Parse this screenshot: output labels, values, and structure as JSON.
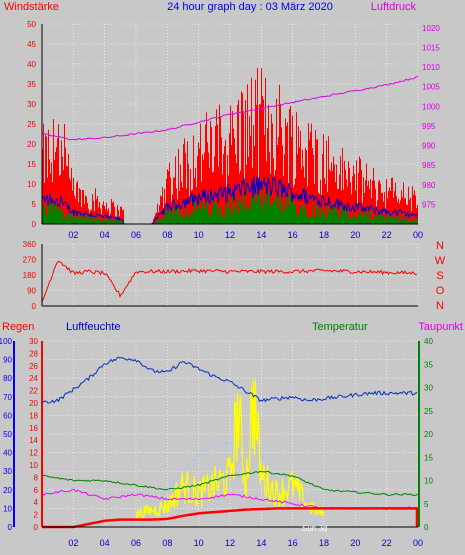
{
  "header": {
    "left_label": "Windstärke",
    "title": "24 hour graph day : 03 März 2020",
    "right_label": "Luftdruck"
  },
  "panel3_labels": {
    "regen": "Regen",
    "luftfeuchte": "Luftfeuchte",
    "temperatur": "Temperatur",
    "taupunkt": "Taupunkt",
    "sunrise_marker": "Sun 3d"
  },
  "colors": {
    "wind": "#ff0000",
    "gust": "#0000c8",
    "green": "#008000",
    "pressure": "#e000e0",
    "humidity": "#0030c0",
    "temperature": "#008000",
    "dewpoint": "#ff00ff",
    "solar": "#ffff00",
    "rain": "#ff0000",
    "grid": "#ffffff"
  },
  "chart_data": [
    {
      "type": "bar",
      "x_ticks": [
        "02",
        "04",
        "06",
        "08",
        "10",
        "12",
        "14",
        "16",
        "18",
        "20",
        "22",
        "00"
      ],
      "left_axis": {
        "ticks": [
          "0",
          "5",
          "10",
          "15",
          "20",
          "25",
          "30",
          "35",
          "40",
          "45",
          "50"
        ],
        "ylim": [
          0,
          50
        ]
      },
      "right_axis": {
        "ticks": [
          "975",
          "980",
          "985",
          "990",
          "995",
          "1000",
          "1005",
          "1010",
          "1015",
          "1020"
        ],
        "ylim": [
          970,
          1021
        ]
      },
      "series": [
        {
          "name": "Windstärke",
          "hours": [
            0,
            1,
            2,
            3,
            4,
            5,
            6,
            7,
            8,
            9,
            10,
            11,
            12,
            13,
            14,
            15,
            16,
            17,
            18,
            19,
            20,
            21,
            22,
            23,
            24
          ],
          "values": [
            20,
            22,
            10,
            8,
            6,
            4,
            0,
            0,
            14,
            18,
            22,
            24,
            26,
            30,
            32,
            30,
            26,
            22,
            20,
            16,
            14,
            12,
            10,
            9,
            7
          ]
        },
        {
          "name": "Luftdruck",
          "hours": [
            0,
            2,
            4,
            6,
            8,
            10,
            12,
            14,
            16,
            18,
            20,
            22,
            24
          ],
          "values": [
            993,
            991.5,
            992,
            993,
            994,
            996,
            998,
            999.5,
            1001,
            1002.5,
            1004,
            1005.5,
            1007.5
          ]
        }
      ]
    },
    {
      "type": "line",
      "x_ticks": [],
      "left_axis": {
        "ticks": [
          "0",
          "90",
          "180",
          "270",
          "360"
        ],
        "ylim": [
          0,
          360
        ]
      },
      "right_axis": {
        "ticks": [
          "N",
          "W",
          "S",
          "O",
          "N"
        ]
      },
      "series": [
        {
          "name": "",
          "hours": [
            0,
            1,
            2,
            3,
            4,
            5,
            6,
            8,
            10,
            12,
            14,
            16,
            18,
            20,
            22,
            24
          ],
          "values": [
            20,
            270,
            190,
            200,
            190,
            60,
            200,
            200,
            205,
            200,
            200,
            200,
            205,
            200,
            195,
            190
          ]
        }
      ]
    },
    {
      "type": "line",
      "x_ticks": [
        "02",
        "04",
        "06",
        "08",
        "10",
        "12",
        "14",
        "16",
        "18",
        "20",
        "22",
        "00"
      ],
      "humidity_axis": {
        "ticks": [
          "0",
          "10",
          "20",
          "30",
          "40",
          "50",
          "60",
          "70",
          "80",
          "90",
          "100"
        ],
        "ylim": [
          0,
          100
        ]
      },
      "rain_axis": {
        "ticks": [
          "0",
          "2",
          "4",
          "6",
          "8",
          "10",
          "12",
          "14",
          "16",
          "18",
          "20",
          "22",
          "24",
          "26",
          "28",
          "30"
        ],
        "ylim": [
          0,
          30
        ]
      },
      "temperature_axis": {
        "ticks": [
          "0",
          "5",
          "10",
          "15",
          "20",
          "25",
          "30",
          "35",
          "40"
        ],
        "ylim": [
          0,
          40
        ]
      },
      "series": [
        {
          "name": "Luftfeuchte",
          "hours": [
            0,
            1,
            2,
            3,
            4,
            5,
            6,
            7,
            8,
            9,
            10,
            11,
            12,
            13,
            14,
            15,
            16,
            17,
            18,
            19,
            20,
            21,
            22,
            23,
            24
          ],
          "values": [
            67,
            68,
            74,
            80,
            88,
            91,
            90,
            84,
            83,
            89,
            85,
            81,
            78,
            73,
            68,
            69,
            70,
            68,
            69,
            70,
            71,
            72,
            72,
            72,
            72
          ]
        },
        {
          "name": "Temperatur",
          "hours": [
            0,
            2,
            4,
            6,
            8,
            10,
            12,
            14,
            16,
            18,
            20,
            22,
            24
          ],
          "values": [
            11,
            10,
            10,
            9,
            8,
            9,
            11,
            12,
            11,
            8,
            7.5,
            7,
            7
          ]
        },
        {
          "name": "Taupunkt",
          "hours": [
            0,
            2,
            4,
            6,
            8,
            10,
            12,
            14,
            16,
            18,
            20,
            22,
            24
          ],
          "values": [
            7,
            8,
            6,
            7,
            6,
            6,
            7,
            6,
            5,
            4,
            4,
            4,
            4
          ]
        },
        {
          "name": "Solar",
          "hours": [
            6,
            7,
            8,
            9,
            10,
            11,
            12,
            12.5,
            13,
            13.5,
            14,
            15,
            16,
            17,
            18
          ],
          "values": [
            3,
            4,
            5,
            10,
            8,
            10,
            12,
            28,
            10,
            31,
            12,
            8,
            10,
            5,
            3
          ]
        },
        {
          "name": "Regen",
          "hours": [
            0,
            2,
            3,
            4,
            5,
            6,
            7,
            8,
            9,
            10,
            11,
            12,
            13,
            14,
            15,
            16,
            24
          ],
          "values": [
            0,
            0,
            0.5,
            1,
            1.2,
            1.2,
            1.2,
            1.3,
            1.8,
            2.2,
            2.4,
            2.6,
            2.8,
            2.9,
            3,
            3,
            3
          ]
        }
      ]
    }
  ]
}
